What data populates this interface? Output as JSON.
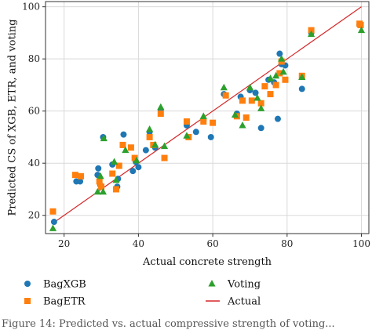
{
  "chart_data": {
    "type": "scatter",
    "xlabel": "Actual concrete strength",
    "ylabel": "Predicted CS of XGB, ETR, and voting",
    "xlim": [
      15,
      102
    ],
    "ylim": [
      13,
      102
    ],
    "xticks": [
      20,
      40,
      60,
      80,
      100
    ],
    "yticks": [
      20,
      40,
      60,
      80,
      100
    ],
    "grid": true,
    "legend_position": "bottom",
    "series": [
      {
        "name": "BagXGB",
        "marker": "circle",
        "color": "#1f77b4",
        "points": [
          [
            17.3,
            17.5
          ],
          [
            23.3,
            33.0
          ],
          [
            24.3,
            33.0
          ],
          [
            29.0,
            35.5
          ],
          [
            29.2,
            38.0
          ],
          [
            29.8,
            31.5
          ],
          [
            30.5,
            50.0
          ],
          [
            33.0,
            39.5
          ],
          [
            34.5,
            34.0
          ],
          [
            34.3,
            31.0
          ],
          [
            36.0,
            51.0
          ],
          [
            38.5,
            37.0
          ],
          [
            39.3,
            40.5
          ],
          [
            40.0,
            38.5
          ],
          [
            42.0,
            45.0
          ],
          [
            43.0,
            52.0
          ],
          [
            44.5,
            46.0
          ],
          [
            46.0,
            60.5
          ],
          [
            53.0,
            54.5
          ],
          [
            55.5,
            52.0
          ],
          [
            57.5,
            56.5
          ],
          [
            59.5,
            50.0
          ],
          [
            63.0,
            66.5
          ],
          [
            66.5,
            59.0
          ],
          [
            67.5,
            65.5
          ],
          [
            70.0,
            68.0
          ],
          [
            71.5,
            67.0
          ],
          [
            73.0,
            53.5
          ],
          [
            75.0,
            72.0
          ],
          [
            76.5,
            71.0
          ],
          [
            77.5,
            57.0
          ],
          [
            78.0,
            82.0
          ],
          [
            78.5,
            78.0
          ],
          [
            79.5,
            77.5
          ],
          [
            84.0,
            68.5
          ],
          [
            86.5,
            90.0
          ],
          [
            99.5,
            93.0
          ]
        ]
      },
      {
        "name": "BagETR",
        "marker": "square",
        "color": "#ff7f0e",
        "points": [
          [
            17.0,
            21.5
          ],
          [
            23.0,
            35.5
          ],
          [
            24.5,
            35.0
          ],
          [
            29.5,
            33.0
          ],
          [
            30.0,
            31.0
          ],
          [
            33.0,
            36.0
          ],
          [
            34.0,
            30.0
          ],
          [
            34.8,
            39.0
          ],
          [
            35.8,
            47.0
          ],
          [
            38.0,
            46.0
          ],
          [
            39.0,
            42.0
          ],
          [
            43.0,
            50.0
          ],
          [
            44.0,
            47.0
          ],
          [
            46.0,
            59.0
          ],
          [
            47.0,
            42.0
          ],
          [
            53.0,
            56.0
          ],
          [
            53.5,
            50.0
          ],
          [
            57.5,
            56.0
          ],
          [
            60.0,
            55.5
          ],
          [
            63.5,
            66.0
          ],
          [
            66.5,
            58.0
          ],
          [
            68.0,
            64.0
          ],
          [
            69.0,
            57.5
          ],
          [
            70.5,
            64.0
          ],
          [
            73.0,
            63.0
          ],
          [
            74.0,
            69.5
          ],
          [
            75.5,
            66.5
          ],
          [
            77.0,
            70.0
          ],
          [
            78.0,
            74.5
          ],
          [
            78.5,
            79.0
          ],
          [
            79.5,
            72.0
          ],
          [
            84.0,
            73.5
          ],
          [
            86.5,
            91.0
          ],
          [
            99.5,
            93.5
          ],
          [
            99.8,
            93.0
          ]
        ]
      },
      {
        "name": "Voting",
        "marker": "triangle",
        "color": "#2ca02c",
        "points": [
          [
            17.0,
            15.0
          ],
          [
            29.0,
            29.0
          ],
          [
            29.8,
            35.0
          ],
          [
            30.5,
            29.0
          ],
          [
            30.7,
            49.5
          ],
          [
            33.5,
            40.5
          ],
          [
            34.0,
            33.5
          ],
          [
            36.5,
            45.0
          ],
          [
            39.5,
            41.0
          ],
          [
            43.0,
            53.0
          ],
          [
            44.5,
            47.0
          ],
          [
            46.0,
            61.5
          ],
          [
            47.0,
            46.5
          ],
          [
            53.0,
            50.5
          ],
          [
            57.5,
            58.0
          ],
          [
            63.0,
            69.0
          ],
          [
            66.0,
            58.5
          ],
          [
            68.0,
            54.5
          ],
          [
            70.0,
            69.0
          ],
          [
            72.0,
            65.0
          ],
          [
            73.0,
            61.0
          ],
          [
            75.5,
            72.5
          ],
          [
            77.0,
            73.5
          ],
          [
            78.5,
            80.0
          ],
          [
            79.0,
            75.0
          ],
          [
            84.0,
            73.0
          ],
          [
            86.5,
            89.5
          ],
          [
            100.0,
            91.0
          ]
        ]
      },
      {
        "name": "Actual",
        "marker": "line",
        "color": "#d62728",
        "points": [
          [
            17,
            17
          ],
          [
            100,
            100
          ]
        ]
      }
    ]
  },
  "caption": "Figure 14: Predicted vs. actual compressive strength of voting..."
}
